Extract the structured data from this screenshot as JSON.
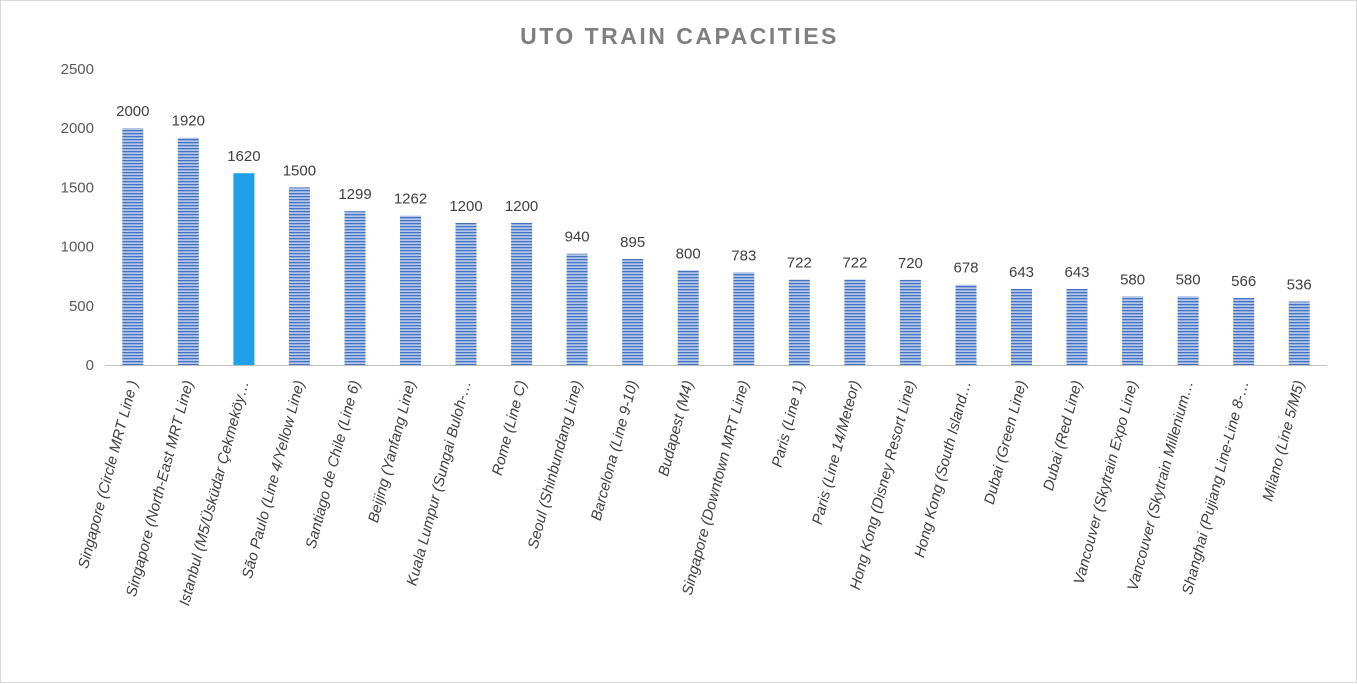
{
  "chart_data": {
    "type": "bar",
    "title": "UTO TRAIN CAPACITIES",
    "xlabel": "",
    "ylabel": "",
    "ylim": [
      0,
      2500
    ],
    "yticks": [
      0,
      500,
      1000,
      1500,
      2000,
      2500
    ],
    "grid": false,
    "legend": "none",
    "colors": {
      "bar": "#8eaadb",
      "bar_stripe": "#4472c4",
      "highlight": "#1ea1e8",
      "axis": "#bfbfbf"
    },
    "highlight_index": 2,
    "categories": [
      "Singapore  (Circle MRT Line )",
      "Singapore  (North-East MRT Line)",
      "Istanbul  (M5/Üsküdar Çekmeköy…",
      "São Paulo  (Line 4/Yellow Line)",
      "Santiago de Chile  (Line 6)",
      "Beijing  (Yanfang Line)",
      "Kuala Lumpur  (Sungai Buloh-…",
      "Rome  (Line C)",
      "Seoul  (Shinbundang Line)",
      "Barcelona  (Line 9-10)",
      "Budapest  (M4)",
      "Singapore  (Downtown MRT Line)",
      "Paris  (Line 1)",
      "Paris  (Line 14/Meteor)",
      "Hong Kong  (Disney Resort Line)",
      "Hong Kong  (South Island…",
      "Dubai  (Green Line)",
      "Dubai  (Red Line)",
      "Vancouver  (Skytrain Expo Line)",
      "Vancouver  (Skytrain Millenium…",
      "Shanghai  (Pujiang Line-Line 8-…",
      "Milano  (Line 5/M5)"
    ],
    "values": [
      2000,
      1920,
      1620,
      1500,
      1299,
      1262,
      1200,
      1200,
      940,
      895,
      800,
      783,
      722,
      722,
      720,
      678,
      643,
      643,
      580,
      580,
      566,
      536
    ]
  }
}
